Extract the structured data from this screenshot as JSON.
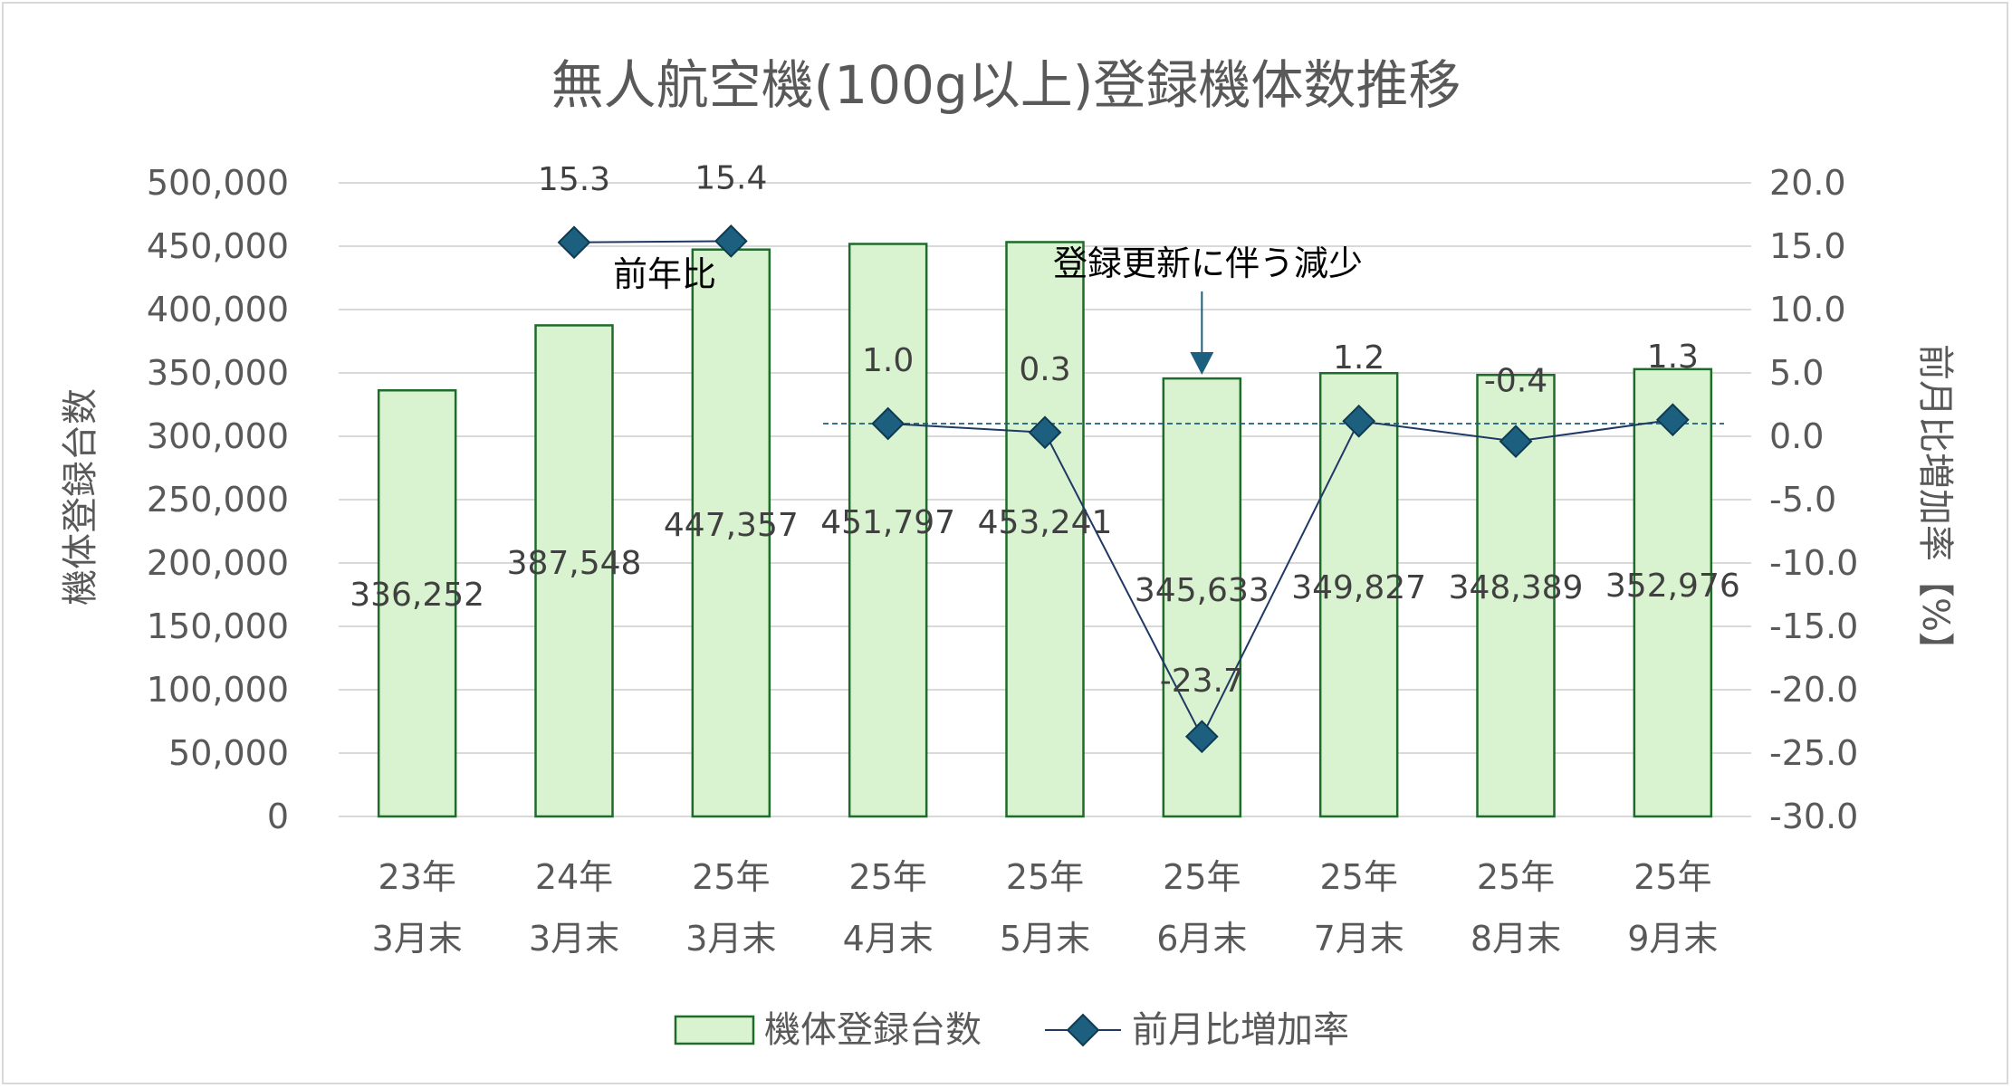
{
  "chart_data": {
    "type": "bar",
    "title": "無人航空機(100g以上)登録機体数推移",
    "categories": [
      [
        "23年",
        "3月末"
      ],
      [
        "24年",
        "3月末"
      ],
      [
        "25年",
        "3月末"
      ],
      [
        "25年",
        "4月末"
      ],
      [
        "25年",
        "5月末"
      ],
      [
        "25年",
        "6月末"
      ],
      [
        "25年",
        "7月末"
      ],
      [
        "25年",
        "8月末"
      ],
      [
        "25年",
        "9月末"
      ]
    ],
    "y_left": {
      "label": "機体登録台数",
      "range": [
        0,
        500000
      ],
      "ticks": [
        "0",
        "50,000",
        "100,000",
        "150,000",
        "200,000",
        "250,000",
        "300,000",
        "350,000",
        "400,000",
        "450,000",
        "500,000"
      ]
    },
    "y_right": {
      "label": "前月比増加率【%】",
      "range": [
        -30,
        20
      ],
      "ticks": [
        "-30.0",
        "-25.0",
        "-20.0",
        "-15.0",
        "-10.0",
        "-5.0",
        "0.0",
        "5.0",
        "10.0",
        "15.0",
        "20.0"
      ]
    },
    "bars": {
      "name": "機体登録台数",
      "values": [
        336252,
        387548,
        447357,
        451797,
        453241,
        345633,
        349827,
        348389,
        352976
      ],
      "labels": [
        "336,252",
        "387,548",
        "447,357",
        "451,797",
        "453,241",
        "345,633",
        "349,827",
        "348,389",
        "352,976"
      ],
      "fill": "#d9f2d0",
      "stroke": "#1e6b2a"
    },
    "yoy_series": {
      "values": [
        null,
        15.3,
        15.4,
        null,
        null,
        null,
        null,
        null,
        null
      ],
      "labels": [
        "",
        "15.3",
        "15.4",
        "",
        "",
        "",
        "",
        "",
        ""
      ],
      "annotation": "前年比"
    },
    "mom_series": {
      "name": "前月比増加率",
      "values": [
        null,
        null,
        null,
        1.0,
        0.3,
        -23.7,
        1.2,
        -0.4,
        1.3
      ],
      "labels": [
        "",
        "",
        "",
        "1.0",
        "0.3",
        "-23.7",
        "1.2",
        "-0.4",
        "1.3"
      ],
      "line_color": "#1f3864",
      "marker_color": "#1c5f7e"
    },
    "reference_line": {
      "value": 1.0,
      "style": "dashed",
      "color": "#1c5f7e"
    },
    "callout": {
      "text": "登録更新に伴う減少",
      "category_index": 5
    },
    "legend": {
      "position": "bottom",
      "entries": [
        "機体登録台数",
        "前月比増加率"
      ]
    },
    "grid": true
  }
}
